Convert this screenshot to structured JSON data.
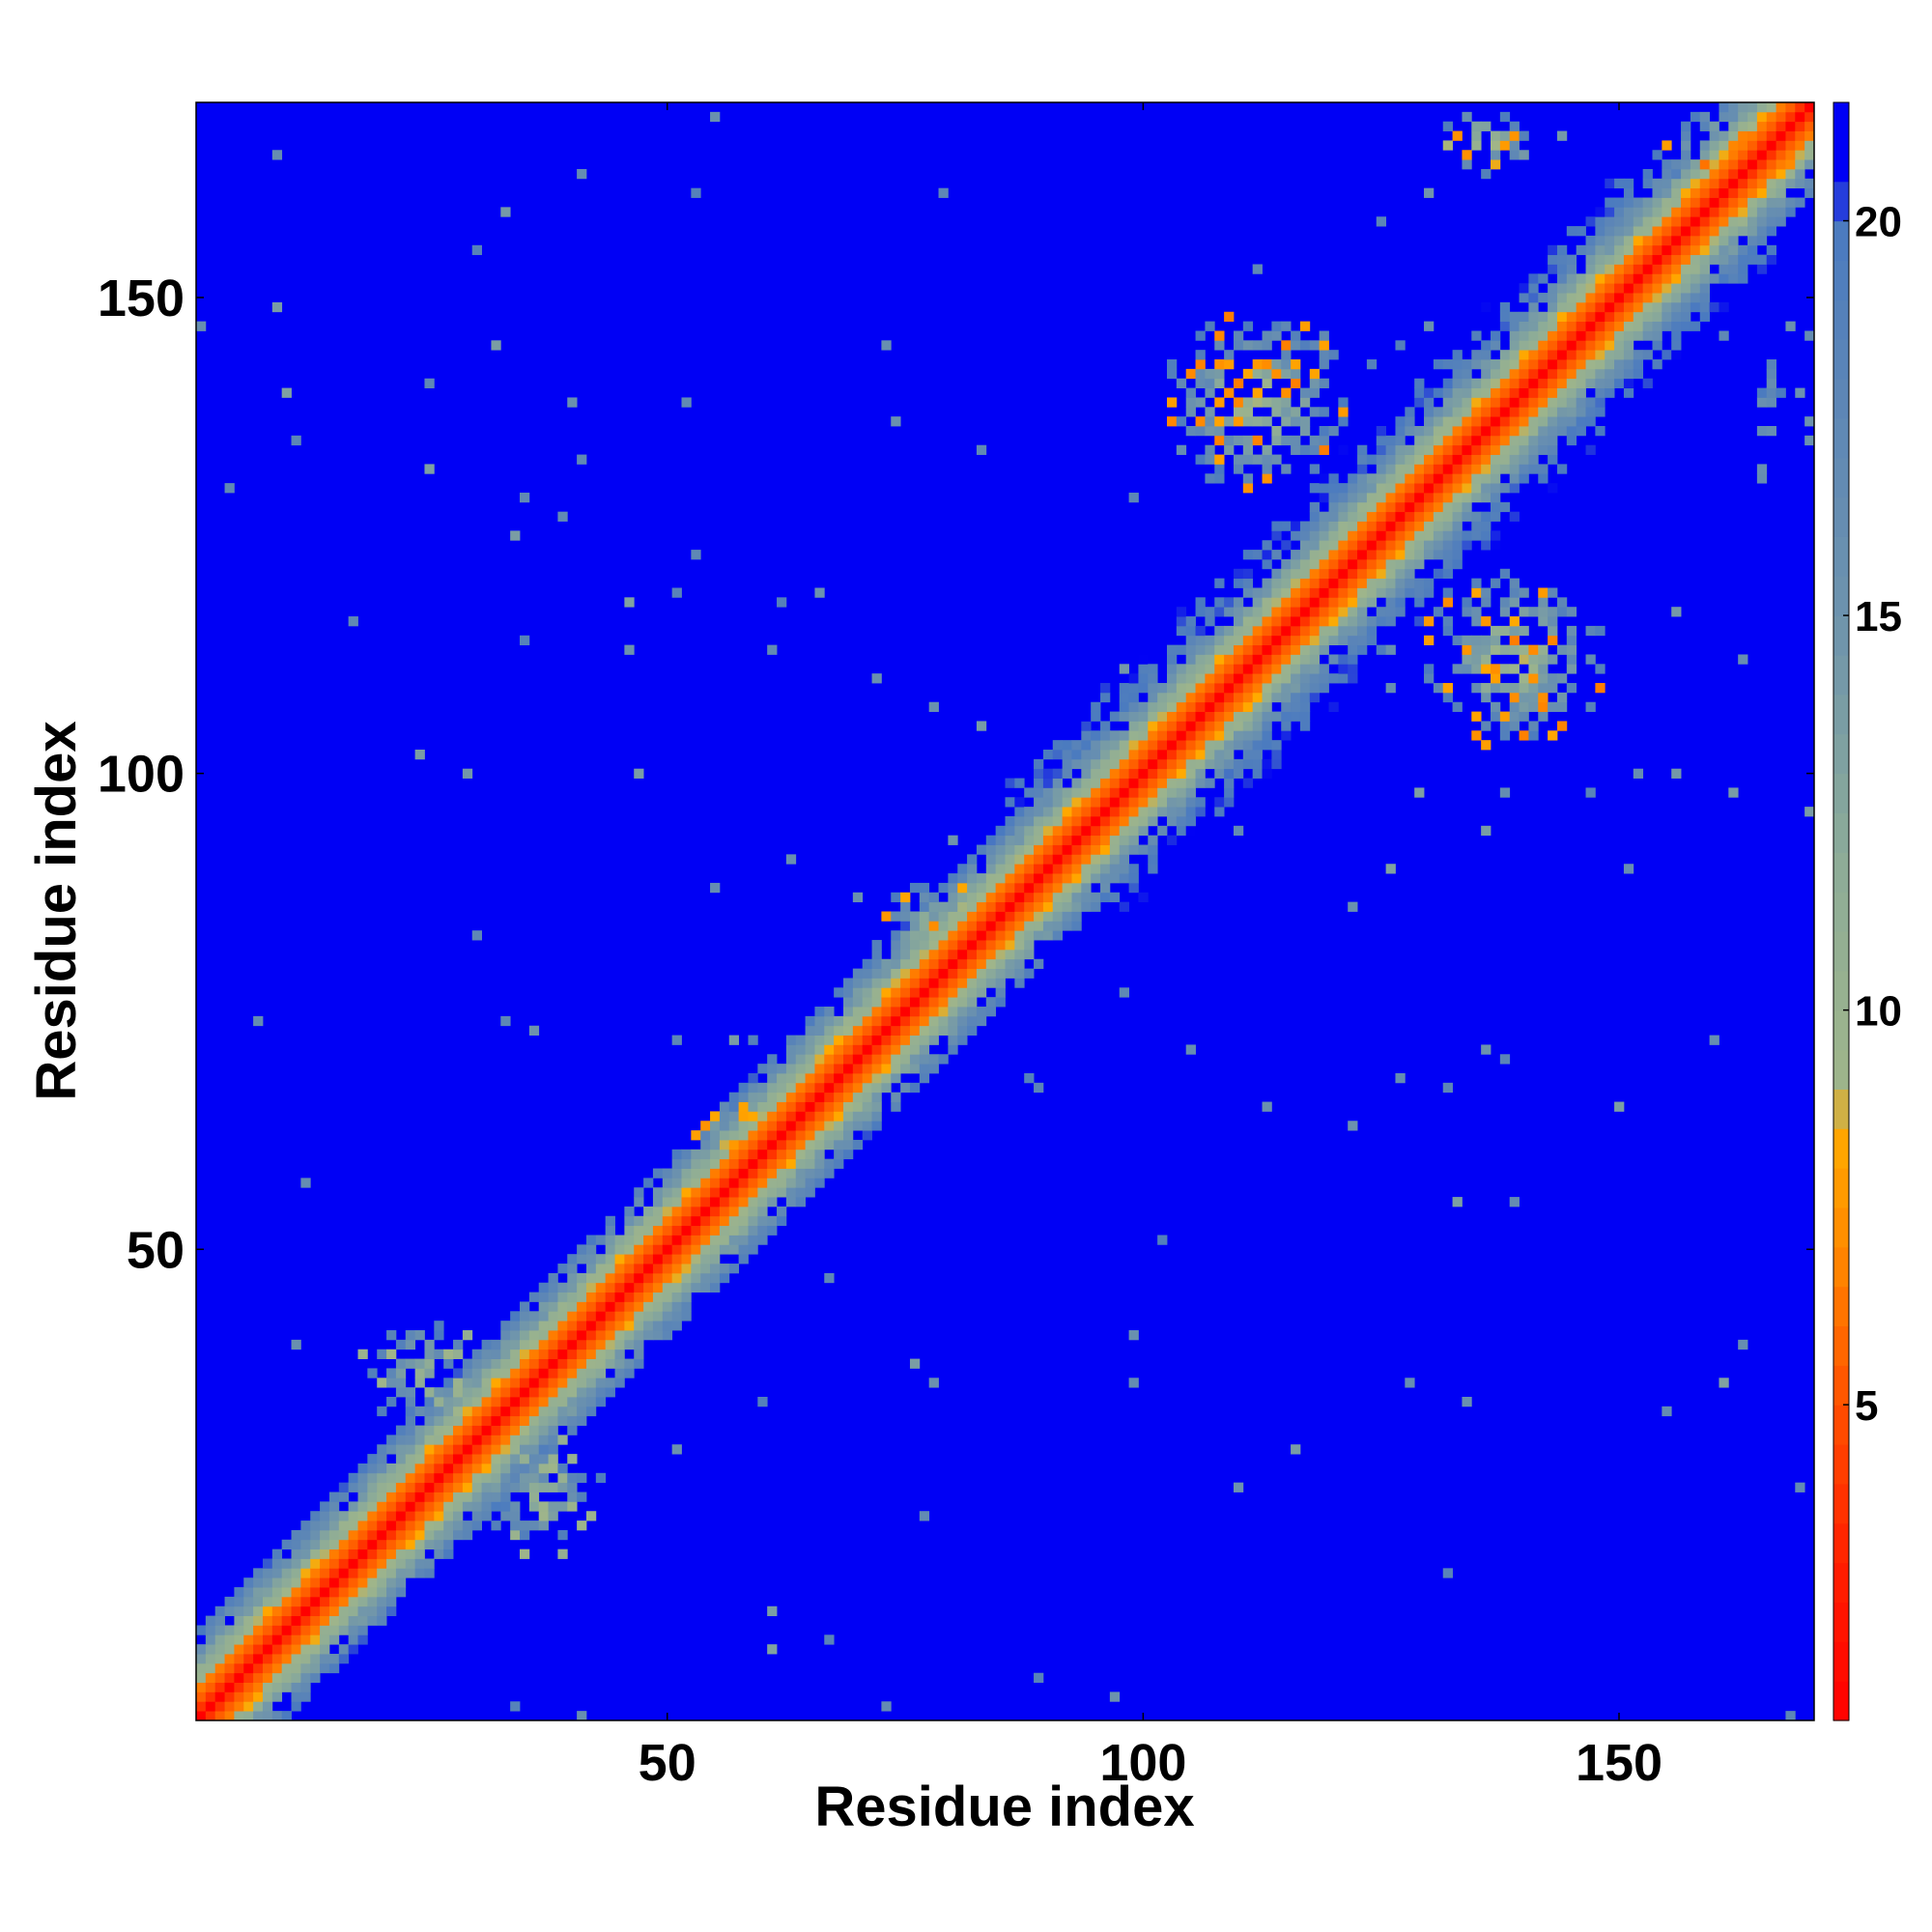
{
  "chart_data": {
    "type": "heatmap",
    "title": "",
    "xlabel": "Residue index",
    "ylabel": "Residue index",
    "n_residues": 170,
    "xlim": [
      1,
      170
    ],
    "ylim": [
      1,
      170
    ],
    "x_ticks": [
      "50",
      "100",
      "150"
    ],
    "y_ticks": [
      "50",
      "100",
      "150"
    ],
    "x_tick_values": [
      50,
      100,
      150
    ],
    "y_tick_values": [
      50,
      100,
      150
    ],
    "colorbar": {
      "range": [
        1,
        21.5
      ],
      "tick_values": [
        5,
        10,
        15,
        20
      ],
      "tick_labels": [
        "5",
        "10",
        "15",
        "20"
      ],
      "color_stops": [
        {
          "value": 1,
          "color": "#ff0000"
        },
        {
          "value": 3,
          "color": "#ff2000"
        },
        {
          "value": 5,
          "color": "#ff5000"
        },
        {
          "value": 7,
          "color": "#ff8a00"
        },
        {
          "value": 8.5,
          "color": "#ffaa00"
        },
        {
          "value": 9,
          "color": "#9fb58a"
        },
        {
          "value": 12,
          "color": "#8cab98"
        },
        {
          "value": 15,
          "color": "#6d93ad"
        },
        {
          "value": 18,
          "color": "#5b85b7"
        },
        {
          "value": 20,
          "color": "#4a7ac0"
        },
        {
          "value": 20.5,
          "color": "#0000f5"
        }
      ]
    },
    "background_value": 21,
    "background_color": "#0000f5",
    "diagonal_band": {
      "description_values": "distance grows with |i-j|",
      "profile": [
        1,
        3.8,
        5.5,
        6.5,
        9.5,
        11,
        13.5,
        15,
        17,
        19
      ]
    },
    "contact_regions": [
      {
        "i_range": [
          103,
          121
        ],
        "j_range": [
          130,
          148
        ],
        "min_value": 6.5
      },
      {
        "i_range": [
          130,
          148
        ],
        "j_range": [
          103,
          121
        ],
        "min_value": 6.5
      },
      {
        "i_range": [
          30,
          44
        ],
        "j_range": [
          18,
          30
        ],
        "min_value": 9
      },
      {
        "i_range": [
          18,
          30
        ],
        "j_range": [
          30,
          44
        ],
        "min_value": 9
      },
      {
        "i_range": [
          52,
          62
        ],
        "j_range": [
          56,
          66
        ],
        "min_value": 7
      },
      {
        "i_range": [
          72,
          84
        ],
        "j_range": [
          78,
          88
        ],
        "min_value": 7
      },
      {
        "i_range": [
          155,
          170
        ],
        "j_range": [
          160,
          170
        ],
        "min_value": 6
      },
      {
        "i_range": [
          132,
          140
        ],
        "j_range": [
          163,
          170
        ],
        "min_value": 7
      },
      {
        "i_range": [
          163,
          170
        ],
        "j_range": [
          131,
          150
        ],
        "min_value": 15
      }
    ]
  }
}
